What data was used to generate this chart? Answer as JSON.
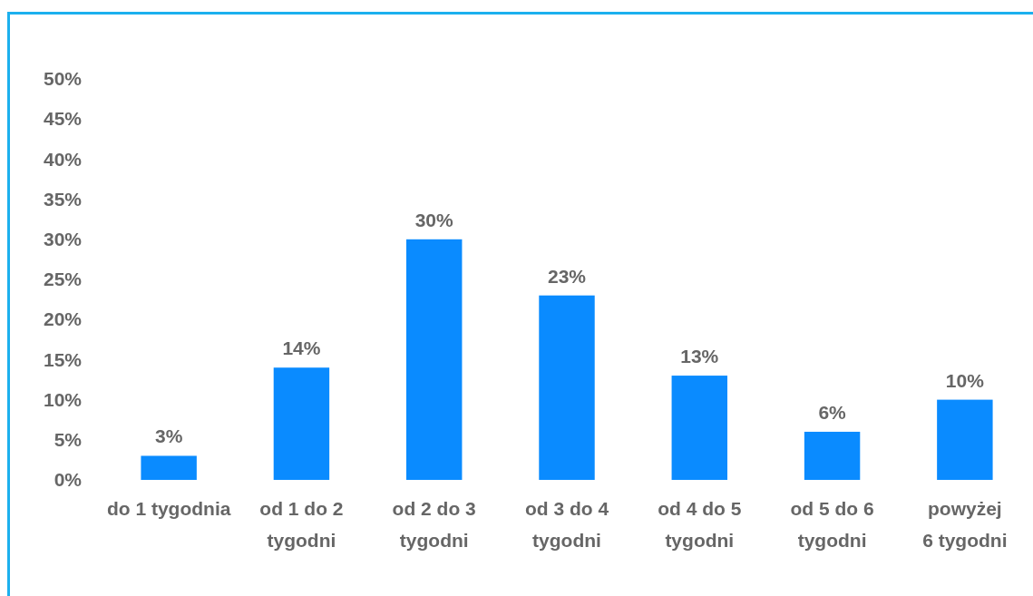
{
  "chart_data": {
    "type": "bar",
    "categories": [
      "do 1 tygodnia",
      "od 1 do 2 tygodni",
      "od 2 do 3 tygodni",
      "od 3 do 4 tygodni",
      "od 4 do 5 tygodni",
      "od 5 do 6 tygodni",
      "powyżej 6 tygodni"
    ],
    "values": [
      3,
      14,
      30,
      23,
      13,
      6,
      10
    ],
    "value_labels": [
      "3%",
      "14%",
      "30%",
      "23%",
      "13%",
      "6%",
      "10%"
    ],
    "color": "#0a8bff",
    "ylim": [
      0,
      50
    ],
    "yticks": [
      {
        "value": 0,
        "label": "0%"
      },
      {
        "value": 5,
        "label": "5%"
      },
      {
        "value": 10,
        "label": "10%"
      },
      {
        "value": 15,
        "label": "15%"
      },
      {
        "value": 20,
        "label": "20%"
      },
      {
        "value": 25,
        "label": "25%"
      },
      {
        "value": 30,
        "label": "30%"
      },
      {
        "value": 35,
        "label": "35%"
      },
      {
        "value": 40,
        "label": "40%"
      },
      {
        "value": 45,
        "label": "45%"
      },
      {
        "value": 50,
        "label": "50%"
      }
    ]
  }
}
